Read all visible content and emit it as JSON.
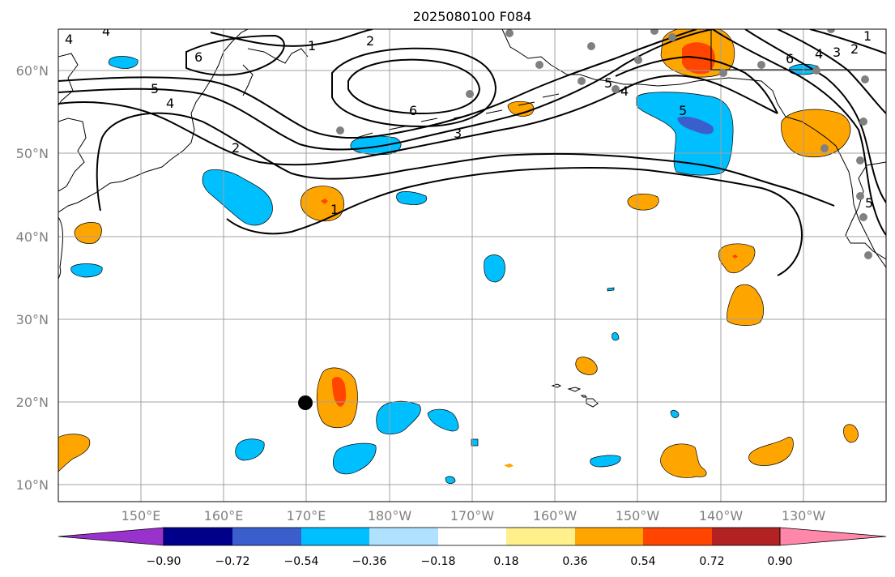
{
  "title": "2025080100 F084",
  "lat_labels": [
    "60°N",
    "50°N",
    "40°N",
    "30°N",
    "20°N",
    "10°N"
  ],
  "lon_labels": [
    "150°E",
    "160°E",
    "170°E",
    "180°W",
    "170°W",
    "160°W",
    "150°W",
    "140°W",
    "130°W"
  ],
  "colorbar": {
    "ticks": [
      "−0.90",
      "−0.72",
      "−0.54",
      "−0.36",
      "−0.18",
      "0.18",
      "0.36",
      "0.54",
      "0.72",
      "0.90"
    ],
    "colors": [
      "#9932cc",
      "#00008b",
      "#3a5fcd",
      "#00bfff",
      "#b0e2ff",
      "#ffffff",
      "#fff08c",
      "#ffa500",
      "#ff4500",
      "#b22222",
      "#ff88aa"
    ]
  },
  "contour_labels": [
    "4",
    "4",
    "1",
    "2",
    "5",
    "4",
    "6",
    "2",
    "3",
    "6",
    "5",
    "4",
    "1",
    "5",
    "6",
    "4",
    "3",
    "2",
    "1",
    "5"
  ],
  "markers": {
    "storm_center": {
      "lat": 20,
      "lon": 170,
      "color": "#000000"
    },
    "station_color": "#808080"
  }
}
